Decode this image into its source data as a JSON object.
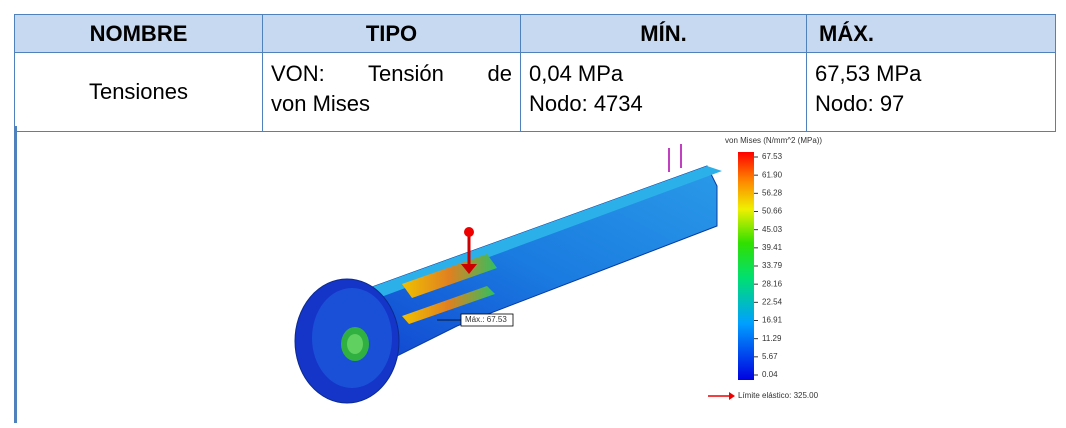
{
  "table": {
    "header": [
      "NOMBRE",
      "TIPO",
      "MÍN.",
      "MÁX."
    ],
    "rows": [
      [
        [
          "Tensiones"
        ],
        [
          "VON: Tensión de",
          "von Mises"
        ],
        [
          "0,04 MPa",
          "Nodo: 4734"
        ],
        [
          "67,53 MPa",
          "Nodo: 97"
        ]
      ]
    ]
  },
  "figure": {
    "legend_title": "von Mises (N/mm^2 (MPa))",
    "legend_labels": [
      "67.53",
      "61.90",
      "56.28",
      "50.66",
      "45.03",
      "39.41",
      "33.79",
      "28.16",
      "22.54",
      "16.91",
      "11.29",
      "5.67",
      "0.04"
    ],
    "yield_label": "Límite elástico: 325.00",
    "max_label": "Máx.: 67.53"
  }
}
